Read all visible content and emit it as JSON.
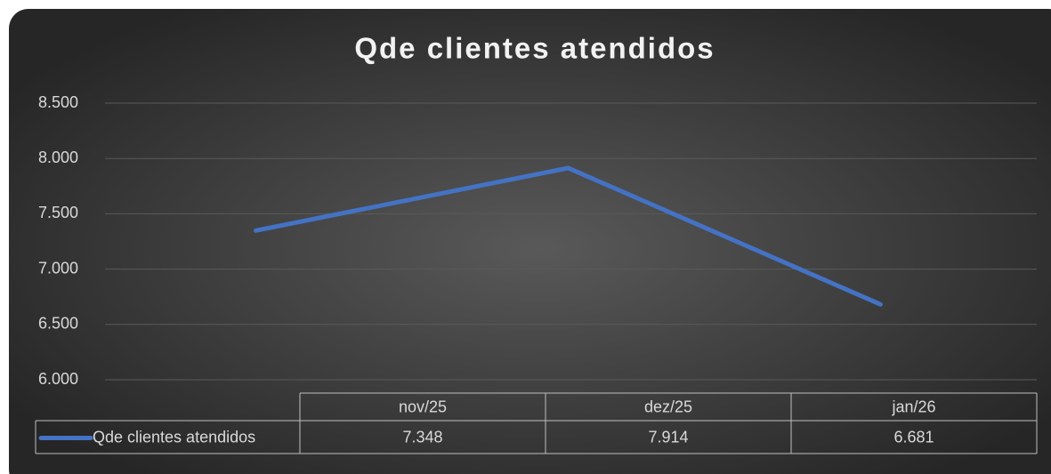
{
  "chart_data": {
    "type": "line",
    "title": "Qde clientes atendidos",
    "categories": [
      "nov/25",
      "dez/25",
      "jan/26"
    ],
    "series": [
      {
        "name": "Qde clientes atendidos",
        "color": "#4472c4",
        "values": [
          7348,
          7914,
          6681
        ],
        "value_labels": [
          "7.348",
          "7.914",
          "6.681"
        ]
      }
    ],
    "ylim": [
      6000,
      8500
    ],
    "yticks": [
      {
        "value": 6000,
        "label": "6.000"
      },
      {
        "value": 6500,
        "label": "6.500"
      },
      {
        "value": 7000,
        "label": "7.000"
      },
      {
        "value": 7500,
        "label": "7.500"
      },
      {
        "value": 8000,
        "label": "8.000"
      },
      {
        "value": 8500,
        "label": "8.500"
      }
    ],
    "grid": true
  }
}
